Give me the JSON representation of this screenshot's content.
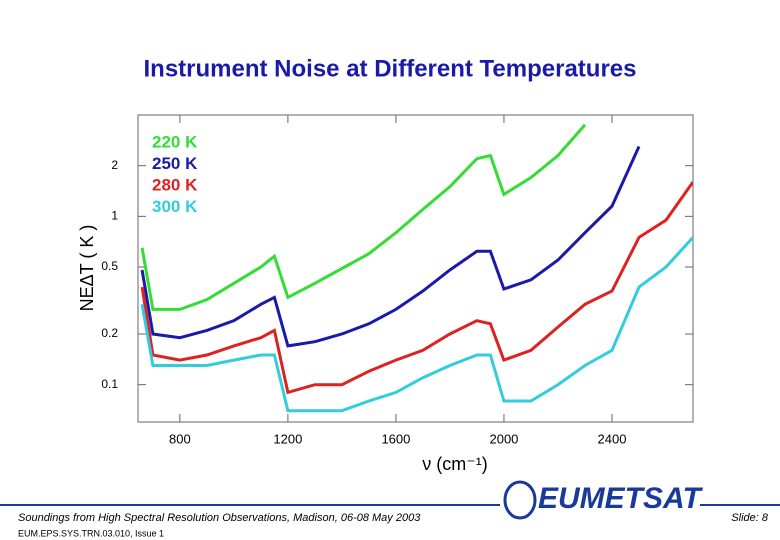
{
  "chart_data": {
    "type": "line",
    "title": "Instrument Noise at Different Temperatures",
    "x_label": "ν (cm⁻¹)",
    "y_label": "NEΔT ( K )",
    "x": [
      660,
      700,
      800,
      900,
      1000,
      1100,
      1150,
      1200,
      1300,
      1400,
      1500,
      1600,
      1700,
      1800,
      1900,
      1950,
      2000,
      2100,
      2200,
      2300,
      2400,
      2500,
      2600,
      2700
    ],
    "series": [
      {
        "name": "220 K",
        "color": "#33dd33",
        "values": [
          0.65,
          0.28,
          0.28,
          0.32,
          0.4,
          0.5,
          0.58,
          0.33,
          0.4,
          0.49,
          0.6,
          0.8,
          1.1,
          1.5,
          2.2,
          2.3,
          1.35,
          1.7,
          2.3,
          3.5,
          null,
          null,
          null,
          null
        ]
      },
      {
        "name": "250 K",
        "color": "#1a1aaa",
        "values": [
          0.48,
          0.2,
          0.19,
          0.21,
          0.24,
          0.3,
          0.33,
          0.17,
          0.18,
          0.2,
          0.23,
          0.28,
          0.36,
          0.48,
          0.62,
          0.62,
          0.37,
          0.42,
          0.55,
          0.8,
          1.15,
          2.6,
          null,
          null
        ]
      },
      {
        "name": "280 K",
        "color": "#dd2222",
        "values": [
          0.38,
          0.15,
          0.14,
          0.15,
          0.17,
          0.19,
          0.21,
          0.09,
          0.1,
          0.1,
          0.12,
          0.14,
          0.16,
          0.2,
          0.24,
          0.23,
          0.14,
          0.16,
          0.22,
          0.3,
          0.36,
          0.75,
          0.95,
          1.6
        ]
      },
      {
        "name": "300 K",
        "color": "#33ccdd",
        "values": [
          0.3,
          0.13,
          0.13,
          0.13,
          0.14,
          0.15,
          0.15,
          0.07,
          0.07,
          0.07,
          0.08,
          0.09,
          0.11,
          0.13,
          0.15,
          0.15,
          0.08,
          0.08,
          0.1,
          0.13,
          0.16,
          0.38,
          0.5,
          0.75
        ]
      }
    ],
    "xlim": [
      645,
      2700
    ],
    "xticks": [
      800,
      1200,
      1600,
      2000,
      2400
    ],
    "ylim": [
      0.06,
      4
    ],
    "yticks": [
      0.1,
      0.2,
      0.5,
      1,
      2
    ],
    "log_y": true,
    "grid": false
  },
  "footer": {
    "line1": "Soundings from High Spectral Resolution Observations, Madison, 06-08 May 2003",
    "line2": "EUM.EPS.SYS.TRN.03.010, Issue 1",
    "logo": "EUMETSAT",
    "slide": "Slide: 8"
  }
}
